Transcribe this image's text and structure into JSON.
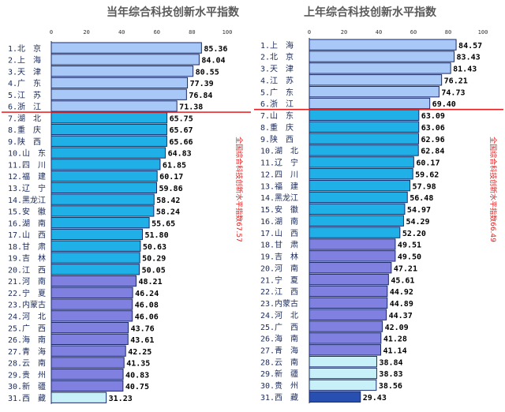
{
  "chart_data": [
    {
      "type": "bar",
      "orientation": "horizontal",
      "title": "当年综合科技创新水平指数",
      "annotation": "全国综合科技创新水平指数67.57",
      "xlim": [
        0,
        100
      ],
      "xticks": [
        "0",
        "20",
        "40",
        "60",
        "80",
        "100"
      ],
      "categories": [
        "1.北　京",
        "2.上　海",
        "3.天　津",
        "4.广　东",
        "5.江　苏",
        "6.浙　江",
        "7.湖　北",
        "8.重　庆",
        "9.陕　西",
        "10.山　东",
        "11.四　川",
        "12.福　建",
        "13.辽　宁",
        "14.黑龙江",
        "15.安　徽",
        "16.湖　南",
        "17.山　西",
        "18.甘　肃",
        "19.吉　林",
        "20.江　西",
        "21.河　南",
        "22.宁　夏",
        "23.内蒙古",
        "24.河　北",
        "25.广　西",
        "26.海　南",
        "27.青　海",
        "28.云　南",
        "29.贵　州",
        "30.新　疆",
        "31.西　藏"
      ],
      "values": [
        85.36,
        84.04,
        80.55,
        77.39,
        76.84,
        71.38,
        65.75,
        65.67,
        65.66,
        64.83,
        61.85,
        60.17,
        59.86,
        58.42,
        58.24,
        55.65,
        51.8,
        50.63,
        50.29,
        50.05,
        48.21,
        46.24,
        46.08,
        46.06,
        43.76,
        43.61,
        42.25,
        41.35,
        40.83,
        40.75,
        31.23
      ],
      "labels": [
        "85.36",
        "84.04",
        "80.55",
        "77.39",
        "76.84",
        "71.38",
        "65.75",
        "65.67",
        "65.66",
        "64.83",
        "61.85",
        "60.17",
        "59.86",
        "58.42",
        "58.24",
        "55.65",
        "51.80",
        "50.63",
        "50.29",
        "50.05",
        "48.21",
        "46.24",
        "46.08",
        "46.06",
        "43.76",
        "43.61",
        "42.25",
        "41.35",
        "40.83",
        "40.75",
        "31.23"
      ],
      "tiers": [
        1,
        1,
        1,
        1,
        1,
        1,
        2,
        2,
        2,
        2,
        2,
        2,
        2,
        2,
        2,
        2,
        2,
        2,
        2,
        2,
        3,
        3,
        3,
        3,
        3,
        3,
        3,
        3,
        3,
        3,
        4
      ],
      "divider_after": 6
    },
    {
      "type": "bar",
      "orientation": "horizontal",
      "title": "上年综合科技创新水平指数",
      "annotation": "全国综合科技创新水平指数66.49",
      "xlim": [
        0,
        100
      ],
      "xticks": [
        "0",
        "20",
        "40",
        "60",
        "80",
        "100"
      ],
      "categories": [
        "1.上　海",
        "2.北　京",
        "3.天　津",
        "4.江　苏",
        "5.广　东",
        "6.浙　江",
        "7.山　东",
        "8.重　庆",
        "9.陕　西",
        "10.湖　北",
        "11.辽　宁",
        "12.四　川",
        "13.福　建",
        "14.黑龙江",
        "15.安　徽",
        "16.湖　南",
        "17.山　西",
        "18.甘　肃",
        "19.吉　林",
        "20.河　南",
        "21.宁　夏",
        "22.江　西",
        "23.内蒙古",
        "24.河　北",
        "25.广　西",
        "26.海　南",
        "27.青　海",
        "28.云　南",
        "29.新　疆",
        "30.贵　州",
        "31.西　藏"
      ],
      "values": [
        84.57,
        83.43,
        81.43,
        76.21,
        74.73,
        69.4,
        63.09,
        63.06,
        62.96,
        62.84,
        60.17,
        59.62,
        57.98,
        56.48,
        54.97,
        54.29,
        52.2,
        49.51,
        49.5,
        47.21,
        45.61,
        44.92,
        44.89,
        44.37,
        42.09,
        41.28,
        41.14,
        38.84,
        38.83,
        38.56,
        29.43
      ],
      "labels": [
        "84.57",
        "83.43",
        "81.43",
        "76.21",
        "74.73",
        "69.40",
        "63.09",
        "63.06",
        "62.96",
        "62.84",
        "60.17",
        "59.62",
        "57.98",
        "56.48",
        "54.97",
        "54.29",
        "52.20",
        "49.51",
        "49.50",
        "47.21",
        "45.61",
        "44.92",
        "44.89",
        "44.37",
        "42.09",
        "41.28",
        "41.14",
        "38.84",
        "38.83",
        "38.56",
        "29.43"
      ],
      "tiers": [
        1,
        1,
        1,
        1,
        1,
        1,
        2,
        2,
        2,
        2,
        2,
        2,
        2,
        2,
        2,
        2,
        2,
        3,
        3,
        3,
        3,
        3,
        3,
        3,
        3,
        3,
        3,
        4,
        4,
        4,
        5
      ],
      "divider_after": 6
    }
  ],
  "colors": {
    "tier1": "#a8c8f8",
    "tier2": "#20b0e8",
    "tier3": "#8080e0",
    "tier4": "#c8f0f8",
    "tier5": "#2850b0",
    "divider": "#e02020",
    "border": "#1a2a6a"
  }
}
